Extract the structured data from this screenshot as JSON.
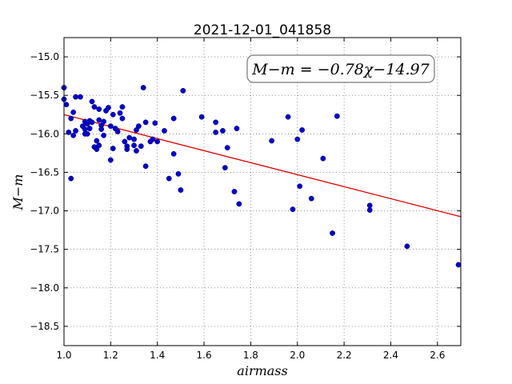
{
  "chart_data": {
    "type": "scatter",
    "title": "2021-12-01_041858",
    "xlabel": "airmass",
    "ylabel": "M−m",
    "xlim": [
      1.0,
      2.7
    ],
    "ylim": [
      -18.75,
      -14.75
    ],
    "y_inverted": true,
    "grid": true,
    "xticks": [
      "1.0",
      "1.2",
      "1.4",
      "1.6",
      "1.8",
      "2.0",
      "2.2",
      "2.4",
      "2.6"
    ],
    "yticks": [
      "−15.0",
      "−15.5",
      "−16.0",
      "−16.5",
      "−17.0",
      "−17.5",
      "−18.0",
      "−18.5"
    ],
    "annotation": "M−m = −0.78χ−14.97",
    "colors": {
      "points": "#0000cc",
      "fit_line": "#dd0000"
    },
    "fit": {
      "slope": -0.78,
      "intercept": -14.97
    },
    "points": [
      [
        1.0,
        -15.4
      ],
      [
        1.0,
        -15.55
      ],
      [
        1.01,
        -15.62
      ],
      [
        1.02,
        -15.98
      ],
      [
        1.03,
        -16.58
      ],
      [
        1.03,
        -15.8
      ],
      [
        1.04,
        -15.72
      ],
      [
        1.04,
        -16.02
      ],
      [
        1.05,
        -15.52
      ],
      [
        1.05,
        -15.96
      ],
      [
        1.07,
        -15.52
      ],
      [
        1.08,
        -15.9
      ],
      [
        1.09,
        -15.84
      ],
      [
        1.09,
        -15.94
      ],
      [
        1.09,
        -16.0
      ],
      [
        1.1,
        -15.87
      ],
      [
        1.1,
        -16.0
      ],
      [
        1.11,
        -15.83
      ],
      [
        1.11,
        -15.93
      ],
      [
        1.12,
        -15.85
      ],
      [
        1.12,
        -15.58
      ],
      [
        1.13,
        -15.65
      ],
      [
        1.13,
        -16.17
      ],
      [
        1.14,
        -16.09
      ],
      [
        1.14,
        -16.2
      ],
      [
        1.15,
        -15.68
      ],
      [
        1.15,
        -15.82
      ],
      [
        1.15,
        -16.15
      ],
      [
        1.16,
        -15.89
      ],
      [
        1.16,
        -15.94
      ],
      [
        1.17,
        -15.84
      ],
      [
        1.17,
        -16.02
      ],
      [
        1.18,
        -15.7
      ],
      [
        1.19,
        -15.66
      ],
      [
        1.2,
        -15.9
      ],
      [
        1.2,
        -16.34
      ],
      [
        1.21,
        -15.75
      ],
      [
        1.21,
        -16.19
      ],
      [
        1.22,
        -15.93
      ],
      [
        1.23,
        -15.97
      ],
      [
        1.24,
        -15.73
      ],
      [
        1.25,
        -15.8
      ],
      [
        1.25,
        -15.65
      ],
      [
        1.26,
        -16.1
      ],
      [
        1.27,
        -16.16
      ],
      [
        1.27,
        -16.2
      ],
      [
        1.28,
        -16.05
      ],
      [
        1.3,
        -16.07
      ],
      [
        1.3,
        -16.15
      ],
      [
        1.31,
        -15.95
      ],
      [
        1.31,
        -16.22
      ],
      [
        1.32,
        -15.9
      ],
      [
        1.33,
        -16.16
      ],
      [
        1.34,
        -15.4
      ],
      [
        1.35,
        -16.42
      ],
      [
        1.35,
        -15.85
      ],
      [
        1.37,
        -16.1
      ],
      [
        1.38,
        -16.07
      ],
      [
        1.39,
        -15.86
      ],
      [
        1.4,
        -16.1
      ],
      [
        1.43,
        -15.96
      ],
      [
        1.45,
        -16.58
      ],
      [
        1.47,
        -16.26
      ],
      [
        1.47,
        -15.8
      ],
      [
        1.49,
        -16.52
      ],
      [
        1.5,
        -16.73
      ],
      [
        1.51,
        -15.44
      ],
      [
        1.59,
        -15.78
      ],
      [
        1.65,
        -15.85
      ],
      [
        1.65,
        -15.98
      ],
      [
        1.68,
        -15.96
      ],
      [
        1.69,
        -16.44
      ],
      [
        1.7,
        -16.18
      ],
      [
        1.73,
        -16.75
      ],
      [
        1.74,
        -15.93
      ],
      [
        1.75,
        -16.91
      ],
      [
        1.89,
        -16.09
      ],
      [
        1.96,
        -15.78
      ],
      [
        1.98,
        -16.98
      ],
      [
        2.0,
        -16.07
      ],
      [
        2.01,
        -16.68
      ],
      [
        2.02,
        -15.95
      ],
      [
        2.06,
        -16.84
      ],
      [
        2.11,
        -16.32
      ],
      [
        2.15,
        -17.29
      ],
      [
        2.17,
        -15.77
      ],
      [
        2.31,
        -16.93
      ],
      [
        2.31,
        -16.99
      ],
      [
        2.47,
        -17.46
      ],
      [
        2.69,
        -17.7
      ]
    ]
  }
}
